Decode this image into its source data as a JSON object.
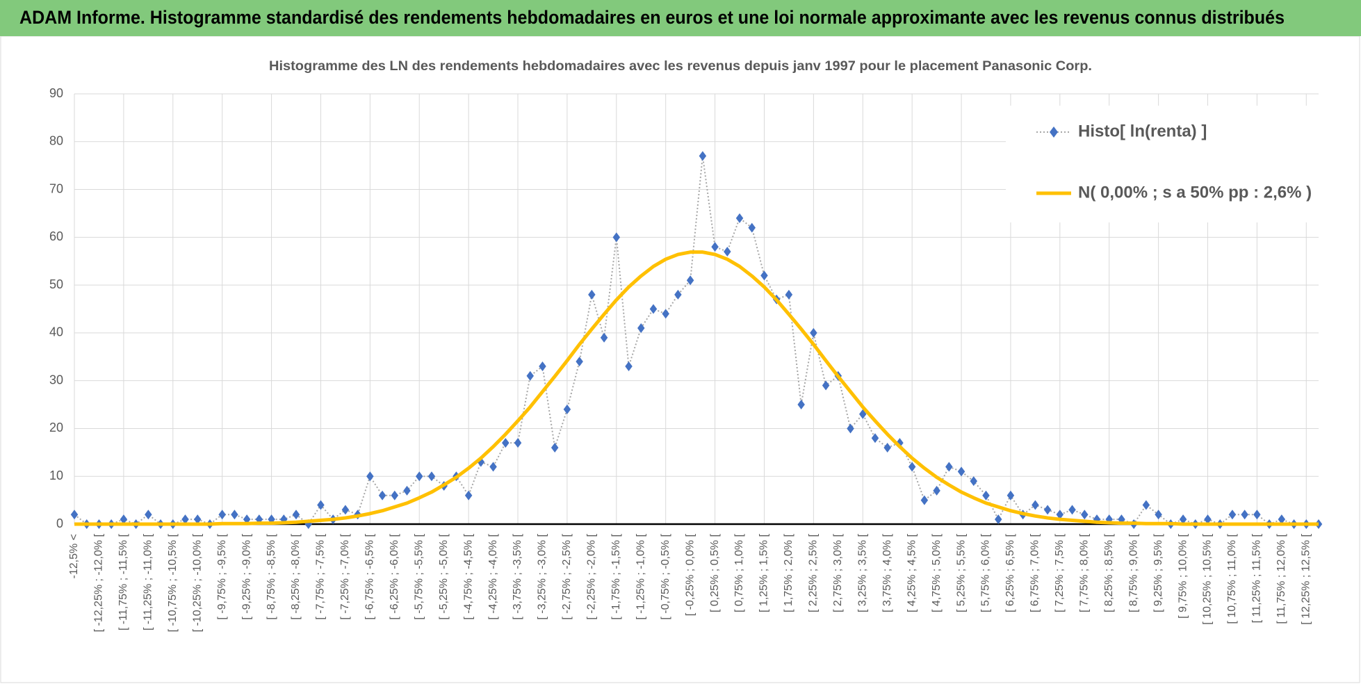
{
  "banner_title": "ADAM Informe. Histogramme standardisé des rendements hebdomadaires en euros et une loi normale approximante avec les revenus connus distribués",
  "chart_data": {
    "type": "line",
    "title": "Histogramme des LN des rendements hebdomadaires avec les revenus depuis janv 1997 pour le placement Panasonic Corp.",
    "categories": [
      "-12,5% <",
      null,
      "[ -12,25% ; -12,0% [",
      null,
      "[ -11,75% ; -11,5% [",
      null,
      "[ -11,25% ; -11,0% [",
      null,
      "[ -10,75% ; -10,5% [",
      null,
      "[ -10,25% ; -10,0% [",
      null,
      "[ -9,75% ; -9,5% [",
      null,
      "[ -9,25% ; -9,0% [",
      null,
      "[ -8,75% ; -8,5% [",
      null,
      "[ -8,25% ; -8,0% [",
      null,
      "[ -7,75% ; -7,5% [",
      null,
      "[ -7,25% ; -7,0% [",
      null,
      "[ -6,75% ; -6,5% [",
      null,
      "[ -6,25% ; -6,0% [",
      null,
      "[ -5,75% ; -5,5% [",
      null,
      "[ -5,25% ; -5,0% [",
      null,
      "[ -4,75% ; -4,5% [",
      null,
      "[ -4,25% ; -4,0% [",
      null,
      "[ -3,75% ; -3,5% [",
      null,
      "[ -3,25% ; -3,0% [",
      null,
      "[ -2,75% ; -2,5% [",
      null,
      "[ -2,25% ; -2,0% [",
      null,
      "[ -1,75% ; -1,5% [",
      null,
      "[ -1,25% ; -1,0% [",
      null,
      "[ -0,75% ; -0,5% [",
      null,
      "[ -0,25% ; 0,0% [",
      null,
      "[ 0,25% ; 0,5% [",
      null,
      "[ 0,75% ; 1,0% [",
      null,
      "[ 1,25% ; 1,5% [",
      null,
      "[ 1,75% ; 2,0% [",
      null,
      "[ 2,25% ; 2,5% [",
      null,
      "[ 2,75% ; 3,0% [",
      null,
      "[ 3,25% ; 3,5% [",
      null,
      "[ 3,75% ; 4,0% [",
      null,
      "[ 4,25% ; 4,5% [",
      null,
      "[ 4,75% ; 5,0% [",
      null,
      "[ 5,25% ; 5,5% [",
      null,
      "[ 5,75% ; 6,0% [",
      null,
      "[ 6,25% ; 6,5% [",
      null,
      "[ 6,75% ; 7,0% [",
      null,
      "[ 7,25% ; 7,5% [",
      null,
      "[ 7,75% ; 8,0% [",
      null,
      "[ 8,25% ; 8,5% [",
      null,
      "[ 8,75% ; 9,0% [",
      null,
      "[ 9,25% ; 9,5% [",
      null,
      "[ 9,75% ; 10,0% [",
      null,
      "[ 10,25% ; 10,5% [",
      null,
      "[ 10,75% ; 11,0% [",
      null,
      "[ 11,25% ; 11,5% [",
      null,
      "[ 11,75% ; 12,0% [",
      null,
      "[ 12,25% ; 12,5% [",
      null
    ],
    "series": [
      {
        "name": "Histo[ ln(renta) ]",
        "color": "#4472c4",
        "values": [
          2,
          0,
          0,
          0,
          1,
          0,
          2,
          0,
          0,
          1,
          1,
          0,
          2,
          2,
          1,
          1,
          1,
          1,
          2,
          0,
          4,
          1,
          3,
          2,
          10,
          6,
          6,
          7,
          10,
          10,
          8,
          10,
          6,
          13,
          12,
          17,
          17,
          31,
          33,
          16,
          24,
          34,
          48,
          39,
          60,
          33,
          41,
          45,
          44,
          48,
          51,
          77,
          58,
          57,
          64,
          62,
          52,
          47,
          48,
          25,
          40,
          29,
          31,
          20,
          23,
          18,
          16,
          17,
          12,
          5,
          7,
          12,
          11,
          9,
          6,
          1,
          6,
          2,
          4,
          3,
          2,
          3,
          2,
          1,
          1,
          1,
          0,
          4,
          2,
          0,
          1,
          0,
          1,
          0,
          2,
          2,
          2,
          0,
          1,
          0,
          0,
          0
        ]
      },
      {
        "name": "N( 0,00% ; s a 50% pp : 2,6% )",
        "color": "#ffc000",
        "values": [
          0,
          0,
          0,
          0,
          0,
          0,
          0,
          0,
          0,
          0,
          0,
          0,
          0.1,
          0.1,
          0.1,
          0.2,
          0.2,
          0.3,
          0.4,
          0.6,
          0.8,
          1.0,
          1.3,
          1.7,
          2.2,
          2.8,
          3.6,
          4.4,
          5.5,
          6.7,
          8.2,
          9.8,
          11.7,
          13.8,
          16.2,
          18.8,
          21.6,
          24.5,
          27.7,
          30.9,
          34.2,
          37.6,
          40.8,
          43.9,
          46.9,
          49.6,
          51.9,
          53.9,
          55.4,
          56.4,
          56.9,
          56.9,
          56.4,
          55.4,
          53.9,
          51.9,
          49.6,
          46.9,
          43.9,
          40.8,
          37.6,
          34.2,
          30.9,
          27.7,
          24.5,
          21.6,
          18.8,
          16.2,
          13.8,
          11.7,
          9.8,
          8.2,
          6.7,
          5.5,
          4.4,
          3.6,
          2.8,
          2.2,
          1.7,
          1.3,
          1.0,
          0.8,
          0.6,
          0.4,
          0.3,
          0.2,
          0.2,
          0.1,
          0.1,
          0.1,
          0,
          0,
          0,
          0,
          0,
          0,
          0,
          0,
          0,
          0,
          0,
          0
        ]
      }
    ],
    "ylim": [
      0,
      90
    ],
    "yticks": [
      0,
      10,
      20,
      30,
      40,
      50,
      60,
      70,
      80,
      90
    ],
    "grid": true,
    "legend": "upper-right"
  }
}
